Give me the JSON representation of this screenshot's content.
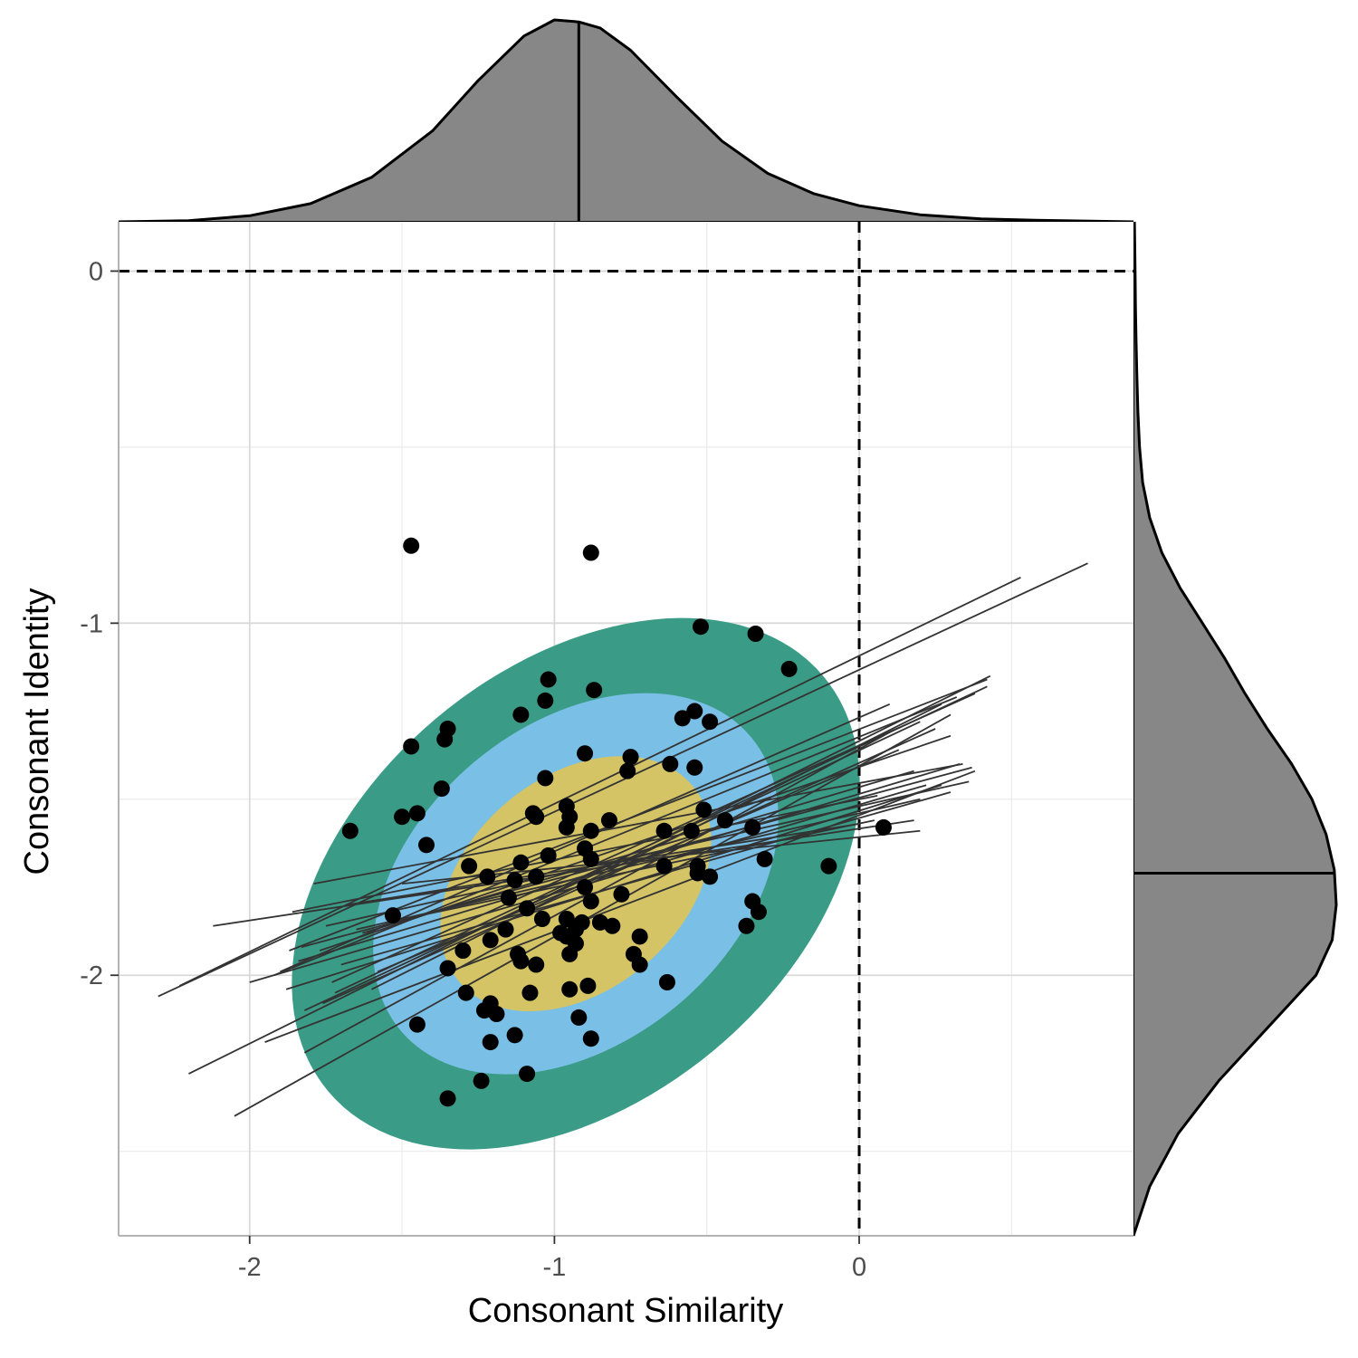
{
  "chart_data": {
    "type": "scatter",
    "xlabel": "Consonant Similarity",
    "ylabel": "Consonant Identity",
    "xlim": [
      -2.43,
      0.9
    ],
    "ylim": [
      -2.74,
      0.14
    ],
    "x_ticks": [
      -2,
      -1,
      0
    ],
    "x_tick_labels": [
      "-2",
      "-1",
      "0"
    ],
    "y_ticks": [
      -2,
      -1,
      0
    ],
    "y_tick_labels": [
      "-2",
      "-1",
      "0"
    ],
    "reference_lines": {
      "x": 0,
      "y": 0,
      "style": "dashed"
    },
    "grid": true,
    "ellipses": {
      "center": [
        -0.93,
        -1.74
      ],
      "angle_deg": -40,
      "levels": [
        {
          "level": "outer",
          "semi_major": 1.06,
          "semi_minor": 0.71,
          "color": "#3a9c86"
        },
        {
          "level": "middle",
          "semi_major": 0.75,
          "semi_minor": 0.52,
          "color": "#79bfe6"
        },
        {
          "level": "inner",
          "semi_major": 0.5,
          "semi_minor": 0.35,
          "color": "#d4c465"
        }
      ]
    },
    "points": [
      [
        -1.47,
        -0.78
      ],
      [
        -0.88,
        -0.8
      ],
      [
        -0.52,
        -1.01
      ],
      [
        -0.34,
        -1.03
      ],
      [
        -0.23,
        -1.13
      ],
      [
        -1.02,
        -1.16
      ],
      [
        -0.87,
        -1.19
      ],
      [
        -1.03,
        -1.22
      ],
      [
        -1.11,
        -1.26
      ],
      [
        -0.54,
        -1.25
      ],
      [
        -0.58,
        -1.27
      ],
      [
        -0.49,
        -1.28
      ],
      [
        -1.35,
        -1.3
      ],
      [
        -1.36,
        -1.33
      ],
      [
        -1.47,
        -1.35
      ],
      [
        -0.9,
        -1.37
      ],
      [
        -0.75,
        -1.38
      ],
      [
        -0.76,
        -1.42
      ],
      [
        -0.62,
        -1.4
      ],
      [
        -0.54,
        -1.41
      ],
      [
        -1.03,
        -1.44
      ],
      [
        -1.37,
        -1.47
      ],
      [
        -0.96,
        -1.52
      ],
      [
        -1.07,
        -1.54
      ],
      [
        -1.06,
        -1.55
      ],
      [
        -0.95,
        -1.55
      ],
      [
        -0.82,
        -1.56
      ],
      [
        -1.45,
        -1.54
      ],
      [
        -1.5,
        -1.55
      ],
      [
        -0.96,
        -1.58
      ],
      [
        -0.51,
        -1.53
      ],
      [
        -0.44,
        -1.56
      ],
      [
        -1.67,
        -1.59
      ],
      [
        -0.64,
        -1.59
      ],
      [
        -0.55,
        -1.59
      ],
      [
        -0.35,
        -1.58
      ],
      [
        -1.42,
        -1.63
      ],
      [
        -1.02,
        -1.66
      ],
      [
        -0.9,
        -1.64
      ],
      [
        -0.88,
        -1.67
      ],
      [
        -0.31,
        -1.67
      ],
      [
        -1.28,
        -1.69
      ],
      [
        -1.11,
        -1.68
      ],
      [
        -0.64,
        -1.69
      ],
      [
        -0.53,
        -1.69
      ],
      [
        -0.1,
        -1.69
      ],
      [
        -1.22,
        -1.72
      ],
      [
        -1.06,
        -1.72
      ],
      [
        -1.13,
        -1.73
      ],
      [
        -0.53,
        -1.71
      ],
      [
        -0.49,
        -1.72
      ],
      [
        -0.9,
        -1.75
      ],
      [
        -0.78,
        -1.77
      ],
      [
        -1.15,
        -1.78
      ],
      [
        -0.88,
        -1.79
      ],
      [
        -0.35,
        -1.79
      ],
      [
        -1.09,
        -1.81
      ],
      [
        -1.04,
        -1.84
      ],
      [
        -0.96,
        -1.84
      ],
      [
        -0.91,
        -1.85
      ],
      [
        -0.85,
        -1.85
      ],
      [
        -0.93,
        -1.87
      ],
      [
        -0.81,
        -1.86
      ],
      [
        -1.53,
        -1.83
      ],
      [
        -0.33,
        -1.82
      ],
      [
        -1.16,
        -1.87
      ],
      [
        -0.98,
        -1.88
      ],
      [
        -0.96,
        -1.89
      ],
      [
        -0.72,
        -1.89
      ],
      [
        -0.37,
        -1.86
      ],
      [
        -1.21,
        -1.9
      ],
      [
        -0.93,
        -1.91
      ],
      [
        -1.3,
        -1.93
      ],
      [
        -1.12,
        -1.94
      ],
      [
        -1.11,
        -1.96
      ],
      [
        -1.06,
        -1.97
      ],
      [
        -0.95,
        -1.94
      ],
      [
        -0.74,
        -1.94
      ],
      [
        -0.72,
        -1.97
      ],
      [
        -1.35,
        -1.98
      ],
      [
        -1.29,
        -2.05
      ],
      [
        -1.08,
        -2.05
      ],
      [
        -0.95,
        -2.04
      ],
      [
        -0.89,
        -2.03
      ],
      [
        -0.63,
        -2.02
      ],
      [
        -1.21,
        -2.08
      ],
      [
        -1.19,
        -2.11
      ],
      [
        -1.23,
        -2.1
      ],
      [
        -0.92,
        -2.12
      ],
      [
        -1.45,
        -2.14
      ],
      [
        -1.13,
        -2.17
      ],
      [
        -0.88,
        -2.18
      ],
      [
        -1.21,
        -2.19
      ],
      [
        -1.09,
        -2.28
      ],
      [
        -1.24,
        -2.3
      ],
      [
        -1.35,
        -2.35
      ],
      [
        -0.88,
        -1.59
      ],
      [
        0.08,
        -1.58
      ]
    ],
    "regression_lines": [
      [
        [
          -2.3,
          -2.06
        ],
        [
          0.75,
          -0.83
        ]
      ],
      [
        [
          -2.23,
          -2.03
        ],
        [
          0.53,
          -0.87
        ]
      ],
      [
        [
          -2.2,
          -2.28
        ],
        [
          0.43,
          -1.15
        ]
      ],
      [
        [
          -2.05,
          -2.4
        ],
        [
          0.3,
          -1.26
        ]
      ],
      [
        [
          -2.12,
          -1.86
        ],
        [
          0.18,
          -1.56
        ]
      ],
      [
        [
          -2.0,
          -2.02
        ],
        [
          0.22,
          -1.46
        ]
      ],
      [
        [
          -1.95,
          -2.19
        ],
        [
          0.38,
          -1.42
        ]
      ],
      [
        [
          -1.87,
          -1.93
        ],
        [
          0.42,
          -1.16
        ]
      ],
      [
        [
          -1.9,
          -1.99
        ],
        [
          0.1,
          -1.23
        ]
      ],
      [
        [
          -1.86,
          -1.82
        ],
        [
          0.06,
          -1.49
        ]
      ],
      [
        [
          -1.82,
          -2.22
        ],
        [
          0.1,
          -1.31
        ]
      ],
      [
        [
          -1.82,
          -2.1
        ],
        [
          0.2,
          -1.28
        ]
      ],
      [
        [
          -1.88,
          -2.04
        ],
        [
          0.27,
          -1.46
        ]
      ],
      [
        [
          -1.92,
          -2.0
        ],
        [
          0.32,
          -1.21
        ]
      ],
      [
        [
          -1.77,
          -1.93
        ],
        [
          0.3,
          -1.32
        ]
      ],
      [
        [
          -1.84,
          -1.96
        ],
        [
          0.33,
          -1.4
        ]
      ],
      [
        [
          -1.83,
          -1.92
        ],
        [
          0.37,
          -1.41
        ]
      ],
      [
        [
          -1.76,
          -2.08
        ],
        [
          0.25,
          -1.3
        ]
      ],
      [
        [
          -1.73,
          -2.02
        ],
        [
          0.38,
          -1.2
        ]
      ],
      [
        [
          -1.79,
          -1.74
        ],
        [
          0.34,
          -1.4
        ]
      ],
      [
        [
          -1.72,
          -2.05
        ],
        [
          0.42,
          -1.18
        ]
      ],
      [
        [
          -1.75,
          -1.86
        ],
        [
          0.36,
          -1.45
        ]
      ],
      [
        [
          -1.7,
          -1.97
        ],
        [
          0.3,
          -1.48
        ]
      ],
      [
        [
          -1.68,
          -1.8
        ],
        [
          0.0,
          -1.57
        ]
      ],
      [
        [
          -1.65,
          -1.87
        ],
        [
          0.2,
          -1.5
        ]
      ],
      [
        [
          -1.6,
          -2.04
        ],
        [
          0.27,
          -1.23
        ]
      ],
      [
        [
          -1.58,
          -1.99
        ],
        [
          0.13,
          -1.36
        ]
      ],
      [
        [
          -1.63,
          -1.88
        ],
        [
          0.18,
          -1.42
        ]
      ],
      [
        [
          -1.55,
          -1.85
        ],
        [
          0.05,
          -1.56
        ]
      ],
      [
        [
          -1.5,
          -1.74
        ],
        [
          0.2,
          -1.59
        ]
      ]
    ],
    "marginal_x_density": {
      "x": [
        -2.43,
        -2.2,
        -2.0,
        -1.8,
        -1.6,
        -1.4,
        -1.25,
        -1.1,
        -1.0,
        -0.92,
        -0.85,
        -0.75,
        -0.6,
        -0.45,
        -0.3,
        -0.15,
        0.0,
        0.2,
        0.4,
        0.6,
        0.9
      ],
      "density": [
        0.0,
        0.006,
        0.03,
        0.09,
        0.22,
        0.45,
        0.7,
        0.92,
        1.0,
        0.99,
        0.96,
        0.85,
        0.62,
        0.4,
        0.24,
        0.14,
        0.08,
        0.035,
        0.015,
        0.007,
        0.0
      ],
      "median": -0.92
    },
    "marginal_y_density": {
      "y": [
        -2.74,
        -2.6,
        -2.45,
        -2.3,
        -2.2,
        -2.1,
        -2.0,
        -1.9,
        -1.8,
        -1.7,
        -1.6,
        -1.5,
        -1.4,
        -1.3,
        -1.2,
        -1.1,
        -1.0,
        -0.9,
        -0.8,
        -0.7,
        -0.6,
        -0.5,
        -0.4,
        -0.3,
        -0.2,
        -0.1,
        0.0,
        0.14
      ],
      "density": [
        0.0,
        0.08,
        0.22,
        0.42,
        0.58,
        0.74,
        0.9,
        0.98,
        1.0,
        0.99,
        0.95,
        0.88,
        0.78,
        0.66,
        0.55,
        0.45,
        0.34,
        0.23,
        0.14,
        0.08,
        0.045,
        0.03,
        0.022,
        0.017,
        0.013,
        0.01,
        0.008,
        0.005
      ],
      "median": -1.71
    }
  }
}
